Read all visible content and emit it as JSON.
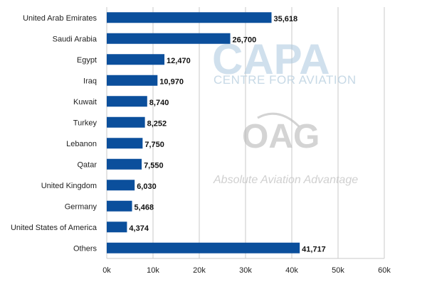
{
  "chart_data": {
    "type": "bar",
    "orientation": "horizontal",
    "categories": [
      "United Arab Emirates",
      "Saudi Arabia",
      "Egypt",
      "Iraq",
      "Kuwait",
      "Turkey",
      "Lebanon",
      "Qatar",
      "United Kingdom",
      "Germany",
      "United States of America",
      "Others"
    ],
    "values": [
      35618,
      26700,
      12470,
      10970,
      8740,
      8252,
      7750,
      7550,
      6030,
      5468,
      4374,
      41717
    ],
    "value_labels": [
      "35,618",
      "26,700",
      "12,470",
      "10,970",
      "8,740",
      "8,252",
      "7,750",
      "7,550",
      "6,030",
      "5,468",
      "4,374",
      "41,717"
    ],
    "x_ticks": [
      0,
      10000,
      20000,
      30000,
      40000,
      50000,
      60000
    ],
    "x_tick_labels": [
      "0k",
      "10k",
      "20k",
      "30k",
      "40k",
      "50k",
      "60k"
    ],
    "xlim": [
      0,
      60000
    ],
    "grid": true,
    "bar_color": "#0b4f9c",
    "title": "",
    "xlabel": "",
    "ylabel": ""
  },
  "watermarks": {
    "capa_logo": "CAPA",
    "capa_subtitle": "CENTRE FOR AVIATION",
    "oag_logo": "OAG",
    "oag_tagline": "Absolute Aviation Advantage"
  }
}
